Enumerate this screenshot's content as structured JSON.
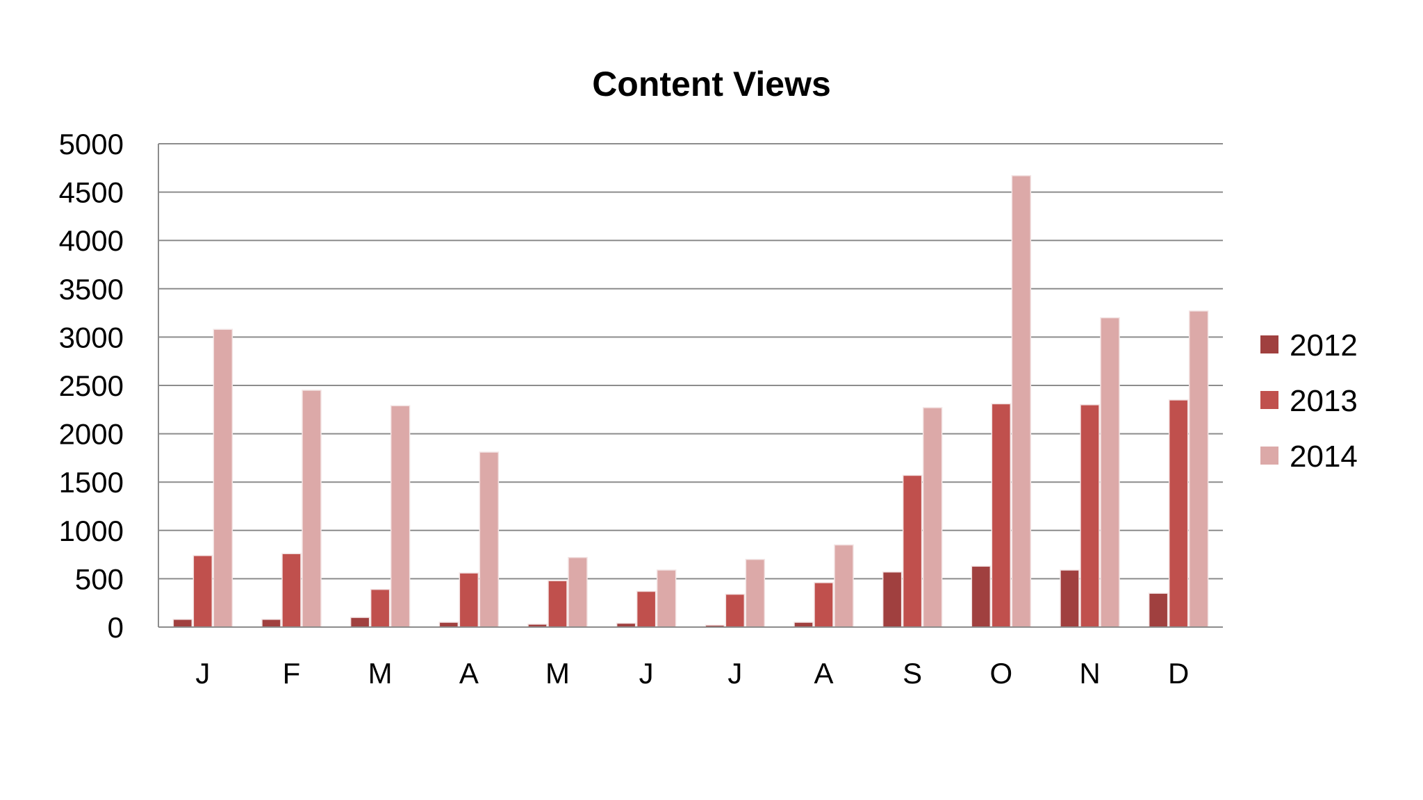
{
  "chart_data": {
    "type": "bar",
    "title": "Content Views",
    "xlabel": "",
    "ylabel": "",
    "categories": [
      "J",
      "F",
      "M",
      "A",
      "M",
      "J",
      "J",
      "A",
      "S",
      "O",
      "N",
      "D"
    ],
    "ylim": [
      0,
      5000
    ],
    "yticks": [
      "0",
      "500",
      "1000",
      "1500",
      "2000",
      "2500",
      "3000",
      "3500",
      "4000",
      "4500",
      "5000"
    ],
    "grid": true,
    "legend_position": "right",
    "series": [
      {
        "name": "2012",
        "color": "#A0403F",
        "values": [
          80,
          80,
          100,
          50,
          30,
          40,
          20,
          50,
          570,
          630,
          590,
          350
        ]
      },
      {
        "name": "2013",
        "color": "#C0504D",
        "values": [
          740,
          760,
          390,
          560,
          480,
          370,
          340,
          460,
          1570,
          2310,
          2300,
          2350
        ]
      },
      {
        "name": "2014",
        "color": "#DCA9A8",
        "values": [
          3080,
          2450,
          2290,
          1810,
          720,
          590,
          700,
          850,
          2270,
          4670,
          3200,
          3270
        ]
      }
    ]
  }
}
